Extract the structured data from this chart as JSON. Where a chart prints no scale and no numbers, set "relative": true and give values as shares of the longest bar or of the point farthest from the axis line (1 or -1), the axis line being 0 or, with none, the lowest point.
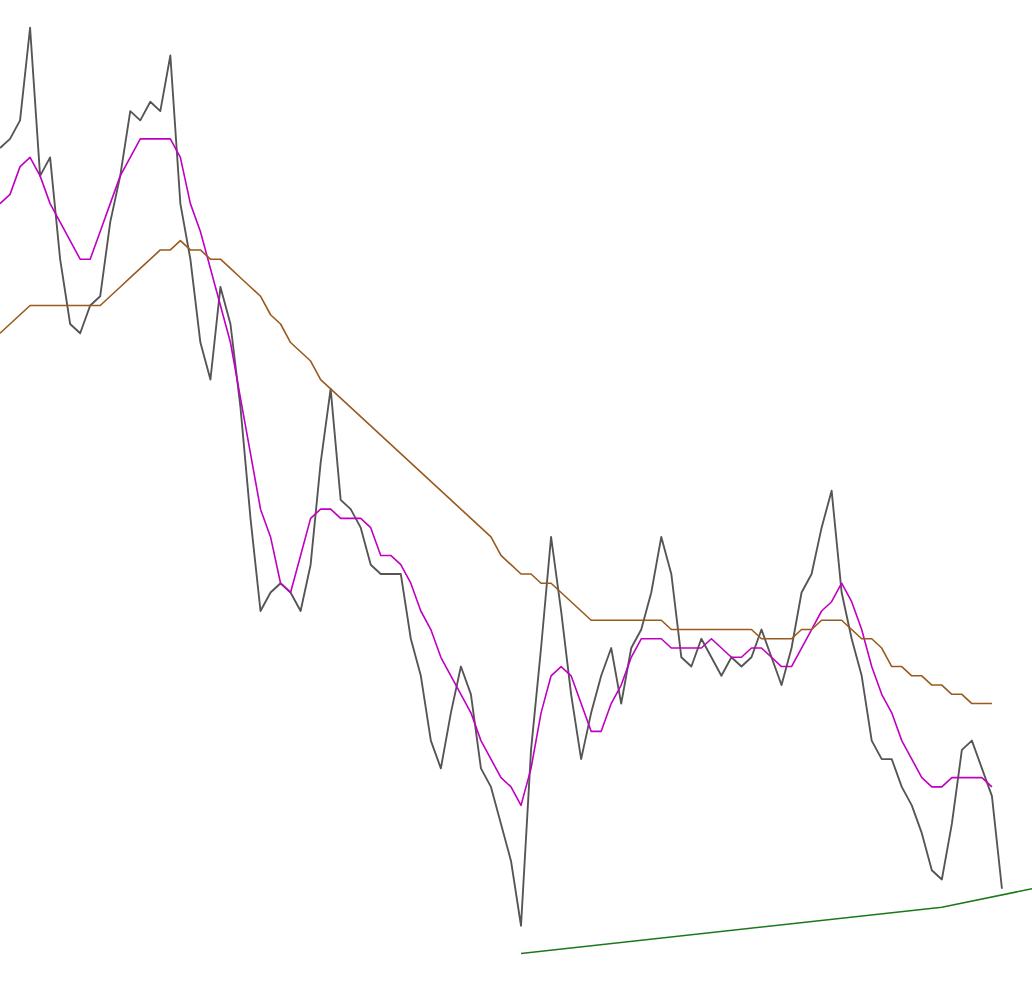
{
  "chart_data": {
    "type": "line",
    "relative": true,
    "categories": [
      null,
      null,
      null,
      null,
      null,
      null,
      null,
      null,
      null,
      null,
      null,
      null,
      null,
      null,
      null,
      null,
      null,
      null,
      null,
      null,
      null,
      null,
      null,
      null,
      null,
      null,
      null,
      null,
      null,
      null,
      null,
      null,
      null,
      null,
      null,
      null,
      null,
      null,
      null,
      null,
      null,
      null,
      null,
      null,
      null,
      null,
      null,
      null,
      null,
      null,
      null,
      null,
      null,
      null,
      null,
      null,
      null,
      null,
      null,
      null,
      null,
      null,
      null,
      null,
      null,
      null,
      null,
      null,
      null,
      null,
      null,
      null,
      null,
      null,
      null,
      null,
      null,
      null,
      null,
      null,
      null,
      null,
      null,
      null,
      null,
      null,
      null,
      null,
      null,
      null,
      null,
      null,
      null,
      null,
      null,
      null,
      null,
      null,
      null,
      null,
      null,
      null,
      null,
      null
    ],
    "series": [
      {
        "color": "#555555",
        "values": [
          0.87,
          0.88,
          0.9,
          1.0,
          0.84,
          0.86,
          0.75,
          0.68,
          0.67,
          0.7,
          0.71,
          0.79,
          0.84,
          0.91,
          0.9,
          0.92,
          0.91,
          0.97,
          0.81,
          0.75,
          0.66,
          0.62,
          0.72,
          0.68,
          0.59,
          0.47,
          0.37,
          0.39,
          0.4,
          0.39,
          0.37,
          0.42,
          0.53,
          0.61,
          0.49,
          0.48,
          0.46,
          0.42,
          0.41,
          0.41,
          0.41,
          0.34,
          0.3,
          0.23,
          0.2,
          0.26,
          0.31,
          0.28,
          0.2,
          0.18,
          0.14,
          0.1,
          0.03,
          0.22,
          0.33,
          0.45,
          0.37,
          0.28,
          0.21,
          0.26,
          0.3,
          0.33,
          0.27,
          0.33,
          0.35,
          0.39,
          0.45,
          0.41,
          0.32,
          0.31,
          0.34,
          0.32,
          0.3,
          0.32,
          0.31,
          0.32,
          0.35,
          0.32,
          0.29,
          0.33,
          0.39,
          0.41,
          0.46,
          0.5,
          0.39,
          0.34,
          0.3,
          0.23,
          0.21,
          0.21,
          0.18,
          0.16,
          0.13,
          0.09,
          0.08,
          0.14,
          0.22,
          0.23,
          0.2,
          0.17,
          0.07,
          null,
          null,
          null
        ]
      },
      {
        "color": "#c000c0",
        "values": [
          0.81,
          0.82,
          0.85,
          0.86,
          0.84,
          0.81,
          0.79,
          0.77,
          0.75,
          0.75,
          0.78,
          0.81,
          0.84,
          0.86,
          0.88,
          0.88,
          0.88,
          0.88,
          0.86,
          0.81,
          0.78,
          0.74,
          0.7,
          0.66,
          0.6,
          0.54,
          0.48,
          0.45,
          0.4,
          0.39,
          0.43,
          0.47,
          0.48,
          0.48,
          0.47,
          0.47,
          0.47,
          0.46,
          0.43,
          0.43,
          0.42,
          0.4,
          0.37,
          0.35,
          0.32,
          0.3,
          0.28,
          0.26,
          0.23,
          0.21,
          0.19,
          0.18,
          0.16,
          0.2,
          0.26,
          0.3,
          0.31,
          0.3,
          0.27,
          0.24,
          0.24,
          0.27,
          0.29,
          0.32,
          0.34,
          0.34,
          0.34,
          0.33,
          0.33,
          0.33,
          0.33,
          0.34,
          0.33,
          0.32,
          0.32,
          0.33,
          0.33,
          0.32,
          0.31,
          0.31,
          0.33,
          0.35,
          0.37,
          0.38,
          0.4,
          0.38,
          0.35,
          0.31,
          0.28,
          0.26,
          0.23,
          0.21,
          0.19,
          0.18,
          0.18,
          0.19,
          0.19,
          0.19,
          0.19,
          0.18,
          null,
          null,
          null,
          null
        ]
      },
      {
        "color": "#9a5a1e",
        "values": [
          0.67,
          0.68,
          0.69,
          0.7,
          0.7,
          0.7,
          0.7,
          0.7,
          0.7,
          0.7,
          0.7,
          0.71,
          0.72,
          0.73,
          0.74,
          0.75,
          0.76,
          0.76,
          0.77,
          0.76,
          0.76,
          0.75,
          0.75,
          0.74,
          0.73,
          0.72,
          0.71,
          0.69,
          0.68,
          0.66,
          0.65,
          0.64,
          0.62,
          0.61,
          0.6,
          0.59,
          0.58,
          0.57,
          0.56,
          0.55,
          0.54,
          0.53,
          0.52,
          0.51,
          0.5,
          0.49,
          0.48,
          0.47,
          0.46,
          0.45,
          0.43,
          0.42,
          0.41,
          0.41,
          0.4,
          0.4,
          0.39,
          0.38,
          0.37,
          0.36,
          0.36,
          0.36,
          0.36,
          0.36,
          0.36,
          0.36,
          0.36,
          0.35,
          0.35,
          0.35,
          0.35,
          0.35,
          0.35,
          0.35,
          0.35,
          0.35,
          0.34,
          0.34,
          0.34,
          0.34,
          0.35,
          0.35,
          0.36,
          0.36,
          0.36,
          0.35,
          0.34,
          0.34,
          0.33,
          0.31,
          0.31,
          0.3,
          0.3,
          0.29,
          0.29,
          0.28,
          0.28,
          0.27,
          0.27,
          0.27,
          null,
          null,
          null,
          null
        ]
      },
      {
        "color": "#1a7a1a",
        "values": [
          null,
          null,
          null,
          null,
          null,
          null,
          null,
          null,
          null,
          null,
          null,
          null,
          null,
          null,
          null,
          null,
          null,
          null,
          null,
          null,
          null,
          null,
          null,
          null,
          null,
          null,
          null,
          null,
          null,
          null,
          null,
          null,
          null,
          null,
          null,
          null,
          null,
          null,
          null,
          null,
          null,
          null,
          null,
          null,
          null,
          null,
          null,
          null,
          null,
          null,
          null,
          null,
          0,
          null,
          null,
          null,
          null,
          null,
          null,
          null,
          null,
          null,
          null,
          null,
          null,
          null,
          null,
          null,
          null,
          null,
          null,
          null,
          null,
          null,
          null,
          null,
          null,
          null,
          null,
          null,
          null,
          null,
          null,
          null,
          null,
          null,
          null,
          null,
          null,
          null,
          null,
          null,
          null,
          null,
          0.05,
          null,
          null,
          null,
          null,
          null,
          null,
          null,
          null,
          0.07
        ]
      }
    ]
  }
}
